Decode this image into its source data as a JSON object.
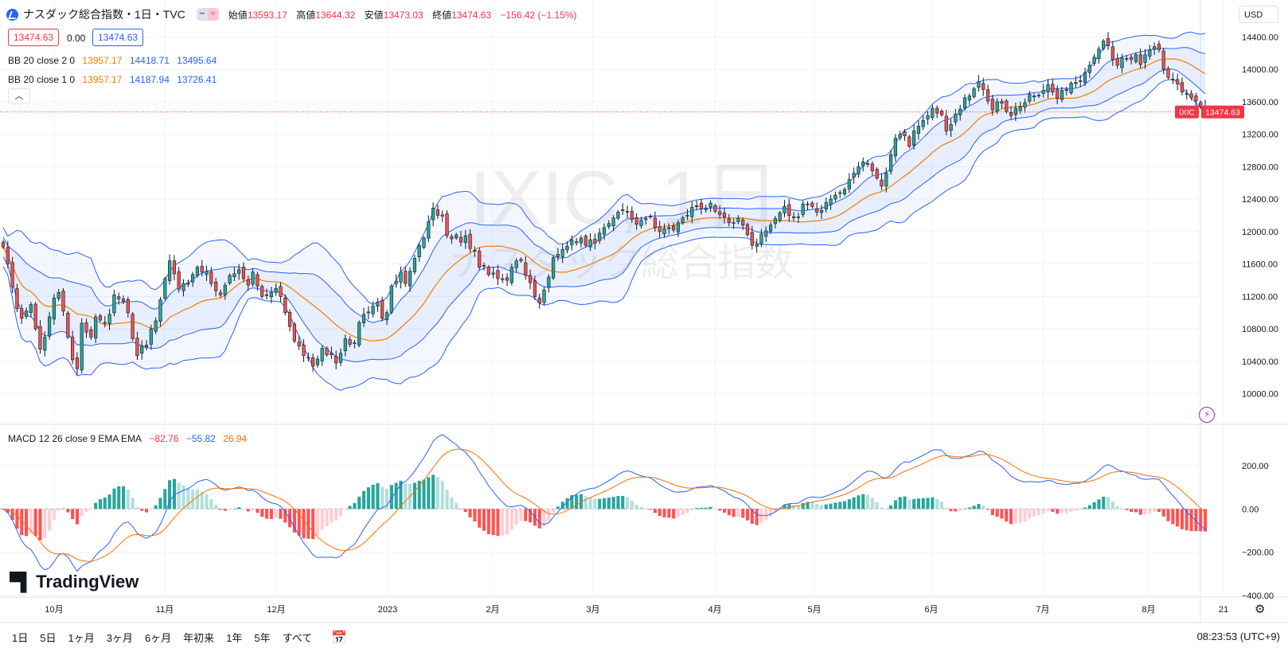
{
  "header": {
    "symbol_title": "ナスダック総合指数・1日・TVC",
    "open_label": "始値",
    "open": "13593.17",
    "high_label": "高値",
    "high": "13644.32",
    "low_label": "安値",
    "low": "13473.03",
    "close_label": "終値",
    "close": "13474.63",
    "change": "−156.42 (−1.15%)"
  },
  "price_boxes": {
    "bid": "13474.63",
    "spread": "0.00",
    "ask": "13474.63"
  },
  "currency": "USD",
  "indicators": {
    "bb2": {
      "label": "BB 20 close 2 0",
      "basis": "13957.17",
      "upper": "14418.71",
      "lower": "13495.64"
    },
    "bb1": {
      "label": "BB 20 close 1 0",
      "basis": "13957.17",
      "upper": "14187.94",
      "lower": "13726.41"
    },
    "macd": {
      "label": "MACD 12 26 close 9 EMA EMA",
      "hist": "−82.76",
      "macd": "−55.82",
      "signal": "26.94"
    }
  },
  "collapse_icon": "chevron-up-icon",
  "watermark": {
    "main": "IXIC, 1日",
    "sub": "ナスダック総合指数"
  },
  "last_price_tag": {
    "symbol": "IXIC",
    "value": "13474.63"
  },
  "colors": {
    "up": "#26a69a",
    "down": "#ef5350",
    "up_dark": "#1f8a7a",
    "down_dark": "#c62828",
    "band": "#2962ff",
    "basis": "#f57c00",
    "macd": "#2962ff",
    "signal": "#ff6d00",
    "hist_up": "#26a69a",
    "hist_up_light": "#b2dfdb",
    "hist_down": "#ff5252",
    "hist_down_light": "#ffcdd2"
  },
  "tradingview_logo": "TradingView",
  "ranges": [
    "1日",
    "5日",
    "1ヶ月",
    "3ヶ月",
    "6ヶ月",
    "年初来",
    "1年",
    "5年",
    "すべて"
  ],
  "clock": "08:23:53 (UTC+9)",
  "chart_data": {
    "type": "candlestick",
    "price_axis": {
      "ticks": [
        "14400.00",
        "14000.00",
        "13600.00",
        "13200.00",
        "12800.00",
        "12400.00",
        "12000.00",
        "11600.00",
        "11200.00",
        "10800.00",
        "10400.00",
        "10000.00"
      ],
      "range": [
        9830,
        14580
      ]
    },
    "macd_axis": {
      "ticks": [
        "200.00",
        "0.00",
        "−200.00",
        "−400.00"
      ],
      "range": [
        -400,
        380
      ]
    },
    "x_axis": {
      "labels": [
        "10月",
        "11月",
        "12月",
        "2023",
        "2月",
        "3月",
        "4月",
        "5月",
        "6月",
        "7月",
        "8月",
        "21"
      ]
    },
    "series": [
      {
        "name": "Close",
        "values": [
          11810,
          11600,
          11320,
          11050,
          10930,
          11020,
          11100,
          10800,
          10550,
          10700,
          10950,
          11180,
          11250,
          11020,
          10700,
          10420,
          10310,
          10870,
          10760,
          10700,
          10950,
          10910,
          10870,
          10980,
          11220,
          11170,
          11140,
          11000,
          10680,
          10470,
          10590,
          10600,
          10800,
          10900,
          11160,
          11420,
          11640,
          11480,
          11290,
          11360,
          11350,
          11470,
          11560,
          11500,
          11510,
          11360,
          11270,
          11220,
          11340,
          11460,
          11480,
          11530,
          11420,
          11340,
          11500,
          11330,
          11200,
          11220,
          11250,
          11300,
          11200,
          11000,
          10830,
          10650,
          10590,
          10470,
          10450,
          10340,
          10430,
          10560,
          10480,
          10480,
          10380,
          10500,
          10680,
          10610,
          10630,
          10880,
          10980,
          11010,
          11080,
          11130,
          10930,
          11000,
          11330,
          11390,
          11500,
          11360,
          11510,
          11670,
          11830,
          11920,
          12120,
          12290,
          12200,
          12190,
          11950,
          11910,
          11960,
          11870,
          11950,
          11790,
          11760,
          11560,
          11580,
          11470,
          11490,
          11420,
          11420,
          11400,
          11560,
          11640,
          11640,
          11460,
          11370,
          11200,
          11120,
          11280,
          11440,
          11680,
          11720,
          11780,
          11820,
          11900,
          11860,
          11920,
          11830,
          11900,
          11860,
          11980,
          12050,
          12100,
          12170,
          12240,
          12270,
          12250,
          12150,
          12090,
          12140,
          12160,
          12180,
          12050,
          12000,
          12040,
          12050,
          12020,
          12110,
          12170,
          12200,
          12300,
          12320,
          12280,
          12290,
          12350,
          12250,
          12210,
          12180,
          12110,
          12100,
          12160,
          12080,
          11960,
          11830,
          11840,
          11970,
          12010,
          12080,
          12160,
          12230,
          12310,
          12200,
          12170,
          12180,
          12340,
          12340,
          12310,
          12240,
          12260,
          12360,
          12400,
          12450,
          12480,
          12520,
          12640,
          12720,
          12800,
          12860,
          12840,
          12750,
          12660,
          12560,
          12720,
          12950,
          13150,
          13200,
          13180,
          13050,
          13240,
          13300,
          13370,
          13430,
          13520,
          13460,
          13440,
          13240,
          13320,
          13450,
          13510,
          13650,
          13670,
          13760,
          13850,
          13750,
          13610,
          13500,
          13600,
          13580,
          13480,
          13430,
          13520,
          13540,
          13590,
          13690,
          13670,
          13680,
          13740,
          13810,
          13720,
          13640,
          13740,
          13740,
          13830,
          13840,
          13860,
          13960,
          14050,
          14150,
          14250,
          14350,
          14290,
          14120,
          14050,
          14140,
          14130,
          14120,
          14180,
          14060,
          14180,
          14240,
          14280,
          14240,
          14000,
          13900,
          13880,
          13820,
          13720,
          13700,
          13650,
          13610,
          13540,
          13474.63
        ]
      }
    ],
    "overlays": [
      "Bollinger Bands (20, close, 2)",
      "Bollinger Bands (20, close, 1)"
    ],
    "subchart": "MACD (12, 26, close, 9)"
  }
}
